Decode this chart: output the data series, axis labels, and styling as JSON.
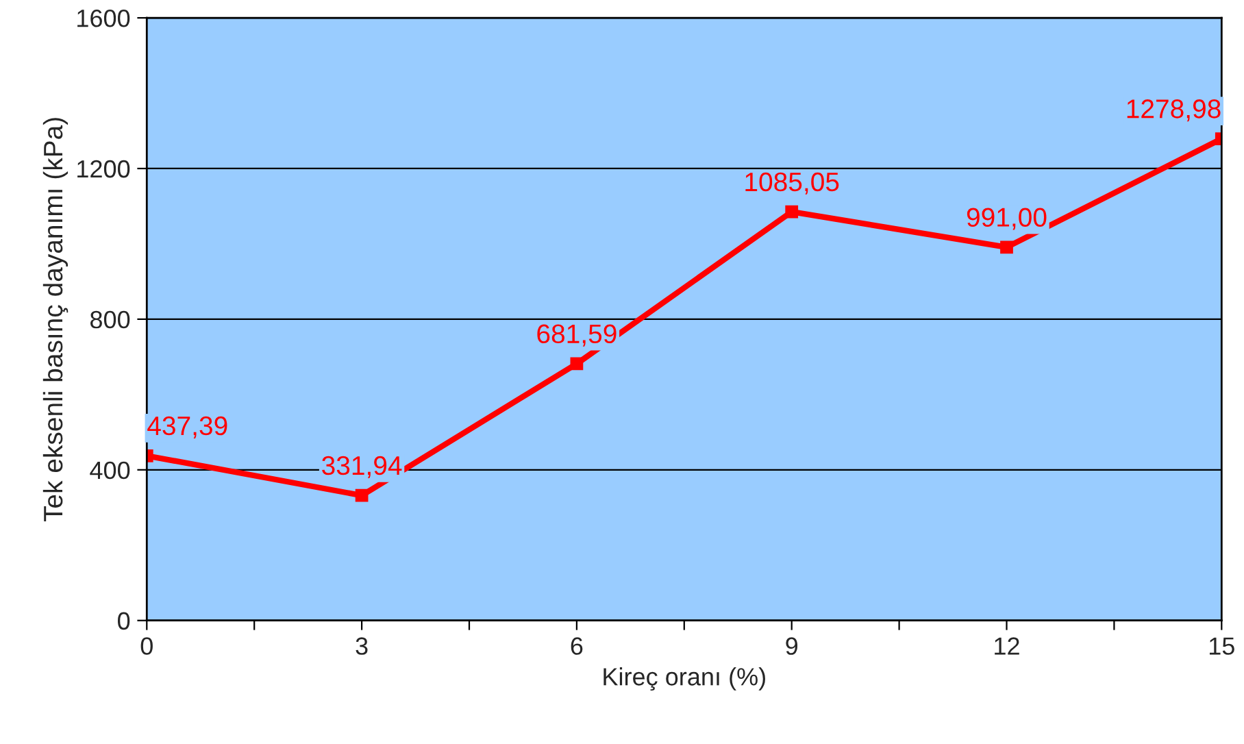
{
  "chart_data": {
    "type": "line",
    "xlabel": "Kireç oranı (%)",
    "ylabel": "Tek eksenli basınç dayanımı (kPa)",
    "x": [
      0,
      3,
      6,
      9,
      12,
      15
    ],
    "series": [
      {
        "color": "#ff0000",
        "values": [
          437.39,
          331.94,
          681.59,
          1085.05,
          991.0,
          1278.98
        ],
        "value_labels": [
          "437,39",
          "331,94",
          "681,59",
          "1085,05",
          "991,00",
          "1278,98"
        ]
      }
    ],
    "xlim": [
      0,
      15
    ],
    "xticks": [
      0,
      {
        "value": 1.5,
        "label": null
      },
      3,
      {
        "value": 4.5,
        "label": null
      },
      6,
      {
        "value": 7.5,
        "label": null
      },
      9,
      {
        "value": 10.5,
        "label": null
      },
      12,
      {
        "value": 13.5,
        "label": null
      },
      15
    ],
    "ylim": [
      0,
      1600
    ],
    "yticks": [
      0,
      400,
      800,
      1200,
      1600
    ],
    "grid": "y",
    "marker": "square",
    "line_style": "solid"
  }
}
